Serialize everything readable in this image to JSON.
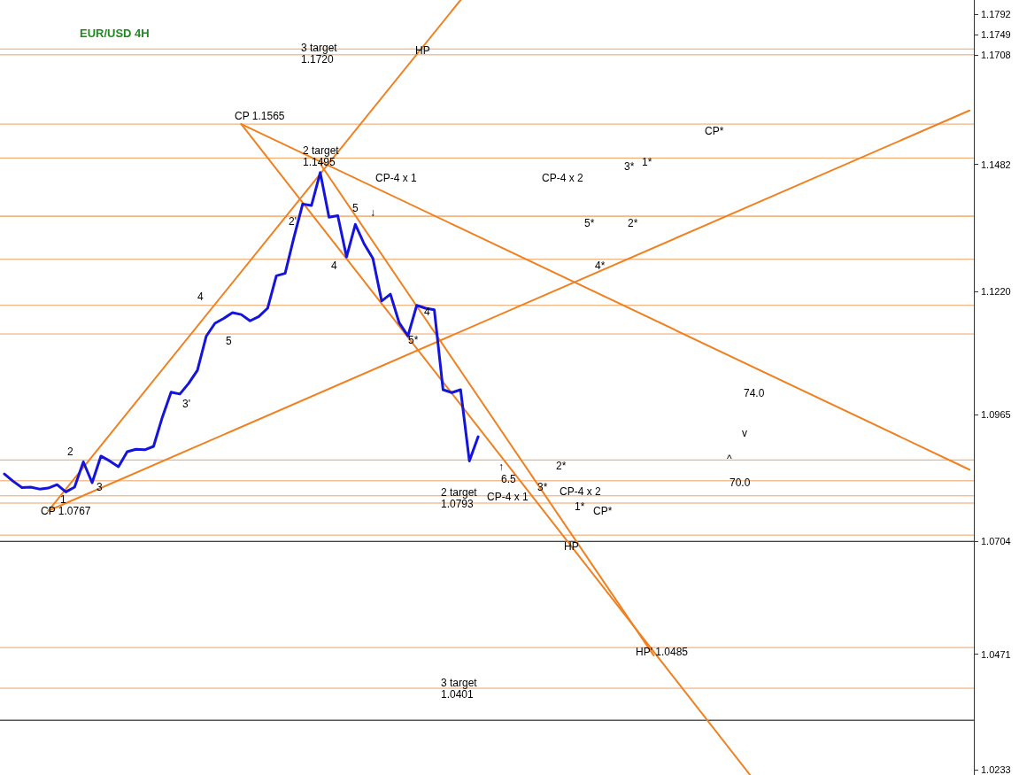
{
  "chart_data": {
    "type": "line",
    "title": "EUR/USD 4H",
    "categories": [
      null,
      null,
      null,
      null,
      null,
      null,
      null,
      null,
      null,
      null,
      null,
      null,
      null,
      null,
      null,
      null,
      null,
      null,
      null,
      null,
      null,
      null,
      null,
      null,
      null,
      null,
      null,
      null,
      null,
      null,
      null,
      null,
      null,
      null,
      null,
      null,
      null,
      null,
      null,
      null,
      null,
      null,
      null,
      null,
      null,
      null,
      null,
      null,
      null,
      null,
      null,
      null,
      null,
      null,
      null,
      null,
      null,
      null,
      null,
      null,
      null,
      null,
      null,
      null,
      null,
      null,
      null,
      null,
      null,
      null,
      null,
      null,
      null,
      null,
      null,
      null,
      null,
      null,
      null,
      null,
      null,
      null,
      null,
      null,
      null,
      null,
      null,
      null,
      null,
      null,
      null,
      null,
      null,
      null,
      null,
      null,
      null,
      null,
      null,
      null,
      null,
      null,
      null,
      null,
      null,
      null,
      null,
      null,
      null,
      null,
      null
    ],
    "ylim": [
      1.0222,
      1.1821
    ],
    "yticks": [
      {
        "value": 1.1792,
        "label": "1.1792"
      },
      {
        "value": 1.1749,
        "label": "1.1749"
      },
      {
        "value": 1.1708,
        "label": "1.1708"
      },
      {
        "value": 1.1482,
        "label": "1.1482"
      },
      {
        "value": 1.122,
        "label": "1.1220"
      },
      {
        "value": 1.0965,
        "label": "1.0965"
      },
      {
        "value": 1.0704,
        "label": "1.0704"
      },
      {
        "value": 1.0471,
        "label": "1.0471"
      },
      {
        "value": 1.0233,
        "label": "1.0233"
      }
    ],
    "tick_labels": "y",
    "marker": "none",
    "line_style": "solid",
    "series": [
      {
        "color": "#1414dc",
        "values": [
          1.0843,
          1.0828,
          1.0815,
          1.0816,
          1.0812,
          1.0814,
          1.0821,
          1.0806,
          1.0816,
          1.0868,
          1.0825,
          1.088,
          1.087,
          1.0858,
          1.0889,
          1.0894,
          1.0893,
          1.09,
          1.096,
          1.1012,
          1.1008,
          1.103,
          1.1057,
          1.1127,
          1.1154,
          1.1164,
          1.1176,
          1.1172,
          1.1159,
          1.1168,
          1.1185,
          1.1252,
          1.1257,
          1.1331,
          1.14,
          1.1397,
          1.1465,
          1.1373,
          1.1376,
          1.1291,
          1.1358,
          1.1318,
          1.1288,
          1.12,
          1.1214,
          1.1155,
          1.1128,
          1.1191,
          1.1185,
          1.1182,
          1.1017,
          1.1011,
          1.1017,
          1.087,
          1.092,
          null,
          null,
          null,
          null,
          null,
          null,
          null,
          null,
          null,
          null,
          null,
          null,
          null,
          null,
          null,
          null,
          null,
          null,
          null,
          null,
          null,
          null,
          null,
          null,
          null,
          null,
          null,
          null,
          null,
          null,
          null,
          null,
          null,
          null,
          null,
          null,
          null,
          null,
          null,
          null,
          null,
          null,
          null,
          null,
          null,
          null,
          null,
          null,
          null,
          null,
          null,
          null,
          null,
          null,
          null,
          null
        ]
      },
      {
        "color": "#f08020",
        "values": [
          null,
          null,
          null,
          null,
          null,
          1.0767,
          null,
          null,
          null,
          null,
          null,
          null,
          null,
          null,
          null,
          null,
          null,
          null,
          null,
          null,
          null,
          null,
          null,
          null,
          null,
          null,
          null,
          null,
          null,
          null,
          null,
          null,
          null,
          null,
          null,
          null,
          null,
          null,
          null,
          null,
          null,
          null,
          null,
          null,
          null,
          null,
          null,
          null,
          null,
          null,
          null,
          null,
          1.1821,
          null,
          null,
          null,
          null,
          null,
          null,
          null,
          null,
          null,
          null,
          null,
          null,
          null,
          null,
          null,
          null,
          null,
          null,
          null,
          null,
          null,
          null,
          null,
          null,
          null,
          null,
          null,
          null,
          null,
          null,
          null,
          null,
          null,
          null,
          null,
          null,
          null,
          null,
          null,
          null,
          null,
          null,
          null,
          null,
          null,
          null,
          null,
          null,
          null,
          null,
          null,
          null,
          null,
          null,
          null,
          null,
          null,
          null
        ]
      },
      {
        "color": "#f08020",
        "values": [
          null,
          null,
          null,
          null,
          null,
          1.0767,
          null,
          null,
          null,
          null,
          null,
          null,
          null,
          null,
          null,
          null,
          null,
          null,
          null,
          null,
          null,
          null,
          null,
          null,
          null,
          null,
          null,
          null,
          null,
          null,
          null,
          null,
          null,
          null,
          null,
          null,
          null,
          null,
          null,
          null,
          null,
          null,
          null,
          null,
          null,
          null,
          null,
          null,
          null,
          null,
          null,
          null,
          null,
          null,
          null,
          null,
          null,
          null,
          null,
          null,
          null,
          null,
          null,
          null,
          null,
          null,
          null,
          null,
          null,
          null,
          null,
          null,
          null,
          null,
          null,
          null,
          null,
          null,
          null,
          null,
          null,
          null,
          null,
          null,
          null,
          null,
          null,
          null,
          null,
          null,
          null,
          null,
          null,
          null,
          null,
          null,
          null,
          null,
          null,
          null,
          null,
          null,
          null,
          null,
          null,
          null,
          null,
          null,
          null,
          null,
          1.1593
        ]
      },
      {
        "color": "#f08020",
        "values": [
          null,
          null,
          null,
          null,
          null,
          null,
          null,
          null,
          null,
          null,
          null,
          null,
          null,
          null,
          null,
          null,
          null,
          null,
          null,
          null,
          null,
          null,
          null,
          null,
          null,
          null,
          null,
          1.1565,
          null,
          null,
          null,
          null,
          null,
          null,
          null,
          null,
          null,
          null,
          null,
          null,
          null,
          null,
          null,
          null,
          null,
          null,
          null,
          null,
          null,
          null,
          null,
          null,
          null,
          null,
          null,
          null,
          null,
          null,
          null,
          null,
          null,
          null,
          null,
          null,
          null,
          null,
          null,
          null,
          null,
          null,
          null,
          null,
          null,
          null,
          null,
          null,
          null,
          null,
          null,
          null,
          null,
          null,
          null,
          null,
          null,
          null,
          null,
          null,
          null,
          null,
          null,
          null,
          null,
          null,
          null,
          null,
          null,
          null,
          null,
          null,
          null,
          null,
          null,
          null,
          null,
          null,
          null,
          null,
          null,
          null,
          1.0852
        ]
      },
      {
        "color": "#f08020",
        "values": [
          null,
          null,
          null,
          null,
          null,
          null,
          null,
          null,
          null,
          null,
          null,
          null,
          null,
          null,
          null,
          null,
          null,
          null,
          null,
          null,
          null,
          null,
          null,
          null,
          null,
          null,
          null,
          1.1565,
          null,
          null,
          null,
          null,
          null,
          null,
          null,
          null,
          null,
          null,
          null,
          null,
          null,
          null,
          null,
          null,
          null,
          null,
          null,
          null,
          null,
          null,
          null,
          null,
          null,
          null,
          null,
          null,
          null,
          null,
          null,
          null,
          null,
          null,
          null,
          null,
          null,
          null,
          null,
          null,
          null,
          null,
          null,
          null,
          null,
          null,
          null,
          null,
          null,
          null,
          null,
          null,
          null,
          null,
          null,
          null,
          null,
          1.0222,
          null,
          null,
          null,
          null,
          null,
          null,
          null,
          null,
          null,
          null,
          null,
          null,
          null,
          null,
          null,
          null,
          null,
          null,
          null,
          null,
          null,
          null,
          null,
          null,
          null
        ]
      },
      {
        "color": "#f08020",
        "values": [
          null,
          null,
          null,
          null,
          null,
          null,
          null,
          null,
          null,
          null,
          null,
          null,
          null,
          null,
          null,
          null,
          null,
          null,
          null,
          null,
          null,
          null,
          null,
          null,
          null,
          null,
          null,
          null,
          null,
          null,
          null,
          null,
          null,
          null,
          null,
          null,
          1.1483,
          null,
          null,
          null,
          null,
          null,
          null,
          null,
          null,
          null,
          null,
          null,
          null,
          null,
          null,
          null,
          null,
          null,
          null,
          null,
          null,
          null,
          null,
          null,
          null,
          null,
          null,
          null,
          null,
          null,
          null,
          null,
          null,
          null,
          null,
          null,
          null,
          null,
          1.0469,
          null,
          null,
          null,
          null,
          null,
          null,
          null,
          null,
          null,
          null,
          null,
          null,
          null,
          null,
          null,
          null,
          null,
          null,
          null,
          null,
          null,
          null,
          null,
          null,
          null,
          null,
          null,
          null,
          null,
          null,
          null,
          null,
          null,
          null,
          null,
          null
        ]
      }
    ],
    "ref_lines": [
      {
        "axis": "y",
        "value": 1.172,
        "color": "#f0a060"
      },
      {
        "axis": "y",
        "value": 1.1708,
        "color": "#f0a060"
      },
      {
        "axis": "y",
        "value": 1.1565,
        "color": "#f0a060"
      },
      {
        "axis": "y",
        "value": 1.1495,
        "color": "#f0a060"
      },
      {
        "axis": "y",
        "value": 1.1375,
        "color": "#f08020"
      },
      {
        "axis": "y",
        "value": 1.1286,
        "color": "#f0a060"
      },
      {
        "axis": "y",
        "value": 1.1191,
        "color": "#f0a060"
      },
      {
        "axis": "y",
        "value": 1.1132,
        "color": "#f0a060"
      },
      {
        "axis": "y",
        "value": 1.0872,
        "color": "#f0a060"
      },
      {
        "axis": "y",
        "value": 1.0829,
        "color": "#f0a060"
      },
      {
        "axis": "y",
        "value": 1.0798,
        "color": "#f0a060"
      },
      {
        "axis": "y",
        "value": 1.0783,
        "color": "#f0a060"
      },
      {
        "axis": "y",
        "value": 1.0717,
        "color": "#f0a060"
      },
      {
        "axis": "y",
        "value": 1.0704,
        "color": "#000000"
      },
      {
        "axis": "y",
        "value": 1.0485,
        "color": "#f0a060"
      },
      {
        "axis": "y",
        "value": 1.0401,
        "color": "#f0a060"
      },
      {
        "axis": "y",
        "value": 1.0335,
        "color": "#000000"
      }
    ],
    "annotations": [
      "3 target\n1.1720",
      "HP",
      "CP 1.1565",
      "2 target\n1.1495",
      "CP-4 x 1",
      "5",
      "↓",
      "2'",
      "4",
      "CP-4 x 2",
      "CP*",
      "3*",
      "1*",
      "5*",
      "2*",
      "4*",
      "4",
      "5",
      "4",
      "5*",
      "3'",
      "2",
      "3",
      "1",
      "CP 1.0767",
      "2 target\n1.0793",
      "CP-4 x 1",
      "↑",
      "6.5",
      "3*",
      "2*",
      "CP-4 x 2",
      "1*",
      "CP*",
      "HP",
      "74.0",
      "v",
      "^",
      "70.0",
      "HP' 1.0485",
      "3 target\n1.0401"
    ]
  }
}
